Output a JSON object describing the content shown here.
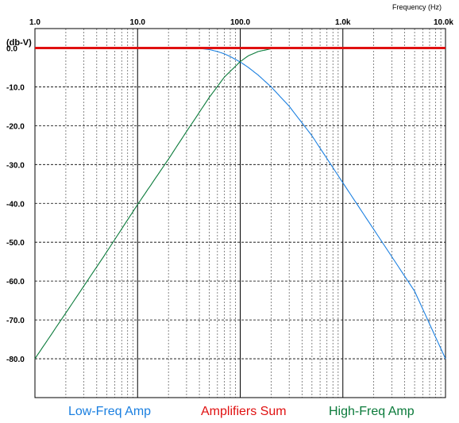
{
  "chart_data": {
    "type": "line",
    "x_scale": "log",
    "xlim": [
      1,
      10000
    ],
    "ylim": [
      -90,
      5
    ],
    "grid": true,
    "x_unit_label": "Frequency   (Hz)",
    "y_unit_label": "(db-V)",
    "x_tick_labels": [
      {
        "value": 1,
        "label": "1.0"
      },
      {
        "value": 10,
        "label": "10.0"
      },
      {
        "value": 100,
        "label": "100.0"
      },
      {
        "value": 1000,
        "label": "1.0k"
      },
      {
        "value": 10000,
        "label": "10.0k"
      }
    ],
    "y_tick_labels": [
      {
        "value": 0,
        "label": "0.0"
      },
      {
        "value": -10,
        "label": "-10.0"
      },
      {
        "value": -20,
        "label": "-20.0"
      },
      {
        "value": -30,
        "label": "-30.0"
      },
      {
        "value": -40,
        "label": "-40.0"
      },
      {
        "value": -50,
        "label": "-50.0"
      },
      {
        "value": -60,
        "label": "-60.0"
      },
      {
        "value": -70,
        "label": "-70.0"
      },
      {
        "value": -80,
        "label": "-80.0"
      }
    ],
    "series": [
      {
        "name": "Low-Freq Amp",
        "color": "#1a7fe0",
        "x": [
          1,
          10,
          30,
          40,
          50,
          60,
          70,
          80,
          100,
          120,
          150,
          200,
          300,
          500,
          1000,
          2000,
          5000,
          10000
        ],
        "y": [
          0,
          0,
          0,
          -0.1,
          -0.4,
          -0.9,
          -1.5,
          -2.2,
          -3.6,
          -5.0,
          -7.0,
          -10.0,
          -15.0,
          -22.6,
          -34.7,
          -46.7,
          -62.6,
          -80.0
        ]
      },
      {
        "name": "High-Freq Amp",
        "color": "#0a7a3a",
        "x": [
          1,
          2,
          5,
          10,
          20,
          30,
          50,
          70,
          100,
          120,
          150,
          200,
          250,
          300,
          1000,
          10000
        ],
        "y": [
          -80.0,
          -68.2,
          -52.5,
          -40.3,
          -28.6,
          -21.5,
          -12.7,
          -7.5,
          -3.5,
          -2.0,
          -0.9,
          -0.2,
          0,
          0,
          0,
          0
        ]
      },
      {
        "name": "Amplifiers Sum",
        "color": "#e01010",
        "x": [
          1,
          10000
        ],
        "y": [
          0,
          0
        ]
      }
    ]
  },
  "legend": {
    "low": {
      "label": "Low-Freq Amp",
      "color": "#1a7fe0"
    },
    "sum": {
      "label": "Amplifiers Sum",
      "color": "#e01010"
    },
    "high": {
      "label": "High-Freq Amp",
      "color": "#0a7a3a"
    }
  }
}
